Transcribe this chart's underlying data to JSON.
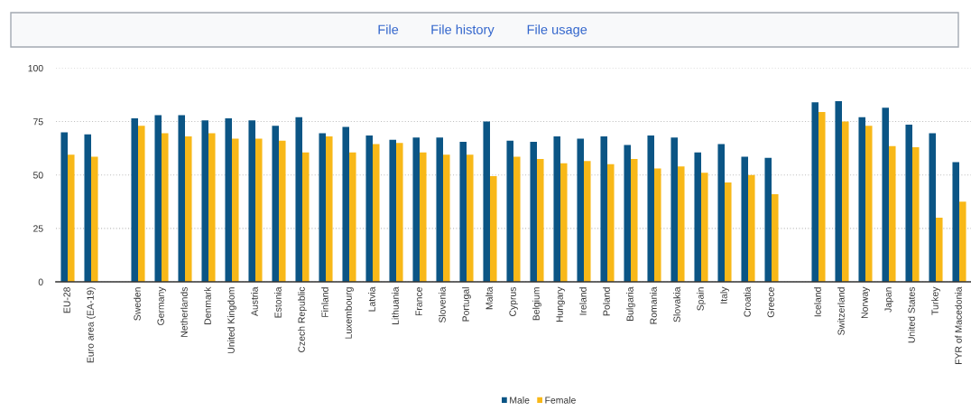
{
  "chart_data": {
    "type": "bar",
    "annotations": [
      "File",
      "File history",
      "File usage"
    ],
    "categories": [
      "EU-28",
      "Euro area (EA-19)",
      null,
      "Sweden",
      "Germany",
      "Netherlands",
      "Denmark",
      "United Kingdom",
      "Austria",
      "Estonia",
      "Czech Republic",
      "Finland",
      "Luxembourg",
      "Latvia",
      "Lithuania",
      "France",
      "Slovenia",
      "Portugal",
      "Malta",
      "Cyprus",
      "Belgium",
      "Hungary",
      "Ireland",
      "Poland",
      "Bulgaria",
      "Romania",
      "Slovakia",
      "Spain",
      "Italy",
      "Croatia",
      "Greece",
      null,
      "Iceland",
      "Switzerland",
      "Norway",
      "Japan",
      "United States",
      "Turkey",
      "FYR of Macedonia"
    ],
    "series": [
      {
        "name": "Male",
        "color": "#0b5585",
        "values": [
          70,
          69,
          null,
          76.5,
          78,
          78,
          75.5,
          76.5,
          75.5,
          73,
          77,
          69.5,
          72.5,
          68.5,
          66.5,
          67.5,
          67.5,
          65.5,
          75,
          66,
          65.5,
          68,
          67,
          68,
          64,
          68.5,
          67.5,
          60.5,
          64.5,
          58.5,
          58,
          null,
          84,
          84.5,
          77,
          81.5,
          73.5,
          69.5,
          56
        ]
      },
      {
        "name": "Female",
        "color": "#f8b818",
        "values": [
          59.5,
          58.5,
          null,
          73,
          69.5,
          68,
          69.5,
          67,
          67,
          66,
          60.5,
          68,
          60.5,
          64.5,
          65,
          60.5,
          59.5,
          59.5,
          49.5,
          58.5,
          57.5,
          55.5,
          56.5,
          55,
          57.5,
          53,
          54,
          51,
          46.5,
          50,
          41,
          null,
          79.5,
          75,
          73,
          63.5,
          63,
          30,
          37.5
        ]
      }
    ],
    "ylim": [
      0,
      100
    ],
    "yticks": [
      0,
      25,
      50,
      75,
      100
    ],
    "grid": "y",
    "legend": "bottom"
  }
}
